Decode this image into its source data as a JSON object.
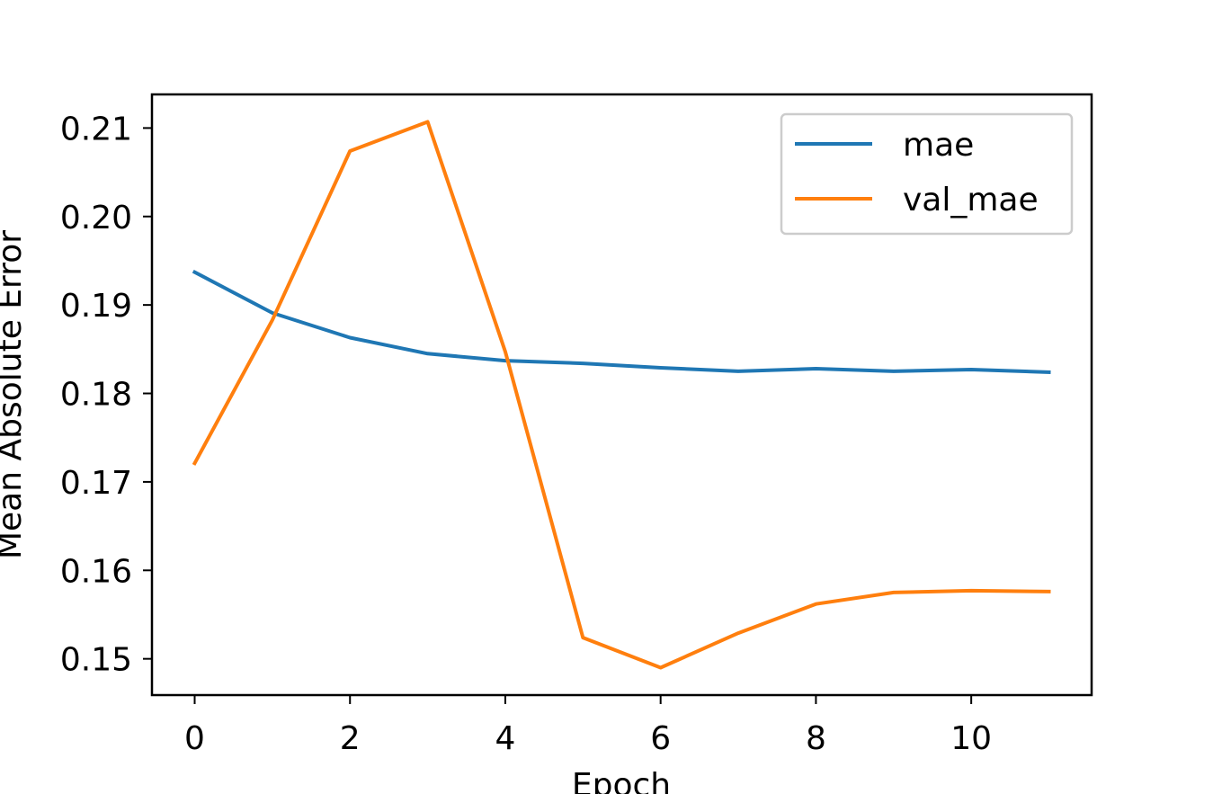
{
  "chart_data": {
    "type": "line",
    "title": "",
    "xlabel": "Epoch",
    "ylabel": "Mean Absolute Error",
    "x": [
      0,
      1,
      2,
      3,
      4,
      5,
      6,
      7,
      8,
      9,
      10,
      11
    ],
    "series": [
      {
        "name": "mae",
        "color": "#1f77b4",
        "values": [
          0.1937,
          0.1891,
          0.1863,
          0.1845,
          0.1837,
          0.1834,
          0.1829,
          0.1825,
          0.1828,
          0.1825,
          0.1827,
          0.1824
        ]
      },
      {
        "name": "val_mae",
        "color": "#ff7f0e",
        "values": [
          0.1721,
          0.1883,
          0.2074,
          0.2107,
          0.1847,
          0.1524,
          0.149,
          0.1529,
          0.1562,
          0.1575,
          0.1577,
          0.1576
        ]
      }
    ],
    "xticks": [
      0,
      2,
      4,
      6,
      8,
      10
    ],
    "xtick_labels": [
      "0",
      "2",
      "4",
      "6",
      "8",
      "10"
    ],
    "yticks": [
      0.15,
      0.16,
      0.17,
      0.18,
      0.19,
      0.2,
      0.21
    ],
    "ytick_labels": [
      "0.15",
      "0.16",
      "0.17",
      "0.18",
      "0.19",
      "0.20",
      "0.21"
    ],
    "xlim": [
      -0.55,
      11.55
    ],
    "ylim": [
      0.1459,
      0.2138
    ],
    "grid": false,
    "legend_position": "top-right"
  }
}
